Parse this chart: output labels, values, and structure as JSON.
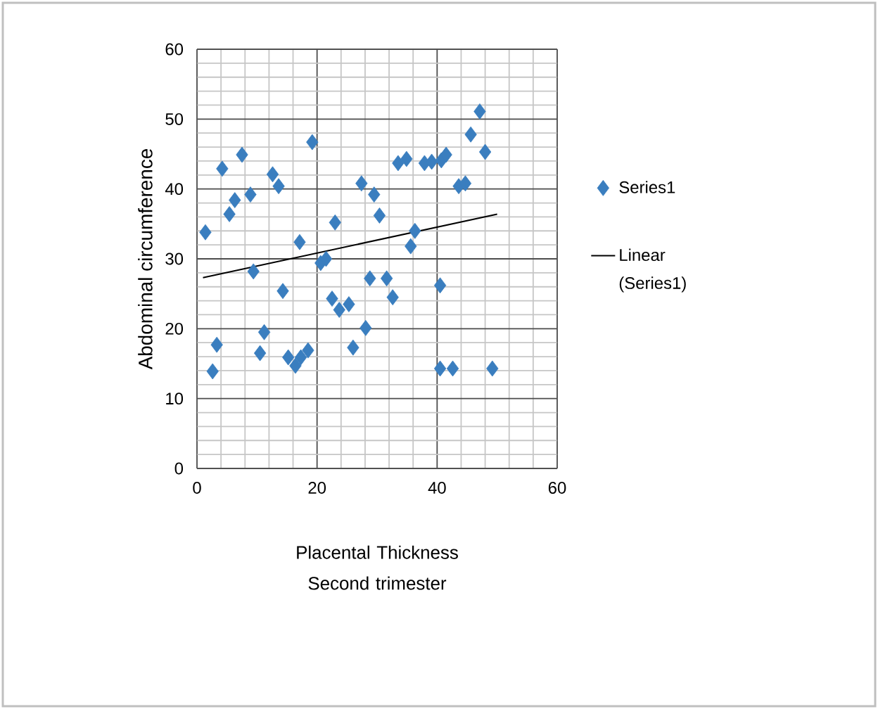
{
  "chart_data": {
    "type": "scatter",
    "xlabel": "Placental Thickness Second trimester",
    "ylabel": "Abdominal circumference",
    "xlim": [
      0,
      60
    ],
    "ylim": [
      0,
      60
    ],
    "xticks": [
      0,
      20,
      40,
      60
    ],
    "yticks": [
      0,
      10,
      20,
      30,
      40,
      50,
      60
    ],
    "grid": true,
    "legend": "right",
    "series": [
      {
        "name": "Series1",
        "color": "#3a7ebf",
        "marker": "diamond",
        "x": [
          1.4,
          2.6,
          3.3,
          4.2,
          5.4,
          6.3,
          7.5,
          8.9,
          9.4,
          10.5,
          11.2,
          12.6,
          13.6,
          14.3,
          15.2,
          16.4,
          17.3,
          17.1,
          18.5,
          19.2,
          20.6,
          21.5,
          22.5,
          23,
          23.7,
          25.3,
          26,
          27.4,
          28.1,
          28.8,
          29.5,
          30.4,
          31.6,
          32.6,
          33.5,
          34.9,
          35.6,
          36.3,
          37.9,
          39.1,
          40.5,
          40.7,
          40.5,
          41.5,
          42.6,
          43.6,
          44.7,
          45.6,
          47.1,
          48,
          49.2
        ],
        "values": [
          33.8,
          13.9,
          17.7,
          42.9,
          36.4,
          38.4,
          44.9,
          39.2,
          28.2,
          16.5,
          19.5,
          42.1,
          40.4,
          25.4,
          15.9,
          14.7,
          15.9,
          32.4,
          16.9,
          46.7,
          29.4,
          30,
          24.3,
          35.2,
          22.7,
          23.5,
          17.3,
          40.8,
          20.1,
          27.2,
          39.2,
          36.2,
          27.2,
          24.5,
          43.7,
          44.3,
          31.8,
          34,
          43.7,
          43.9,
          14.3,
          44.1,
          26.2,
          44.9,
          14.3,
          40.4,
          40.8,
          47.8,
          51.1,
          45.3,
          14.3
        ]
      },
      {
        "name": "Linear (Series1)",
        "type": "line",
        "marker": "none",
        "color": "#000000",
        "x": [
          1,
          50
        ],
        "values": [
          27.3,
          36.4
        ]
      }
    ]
  }
}
